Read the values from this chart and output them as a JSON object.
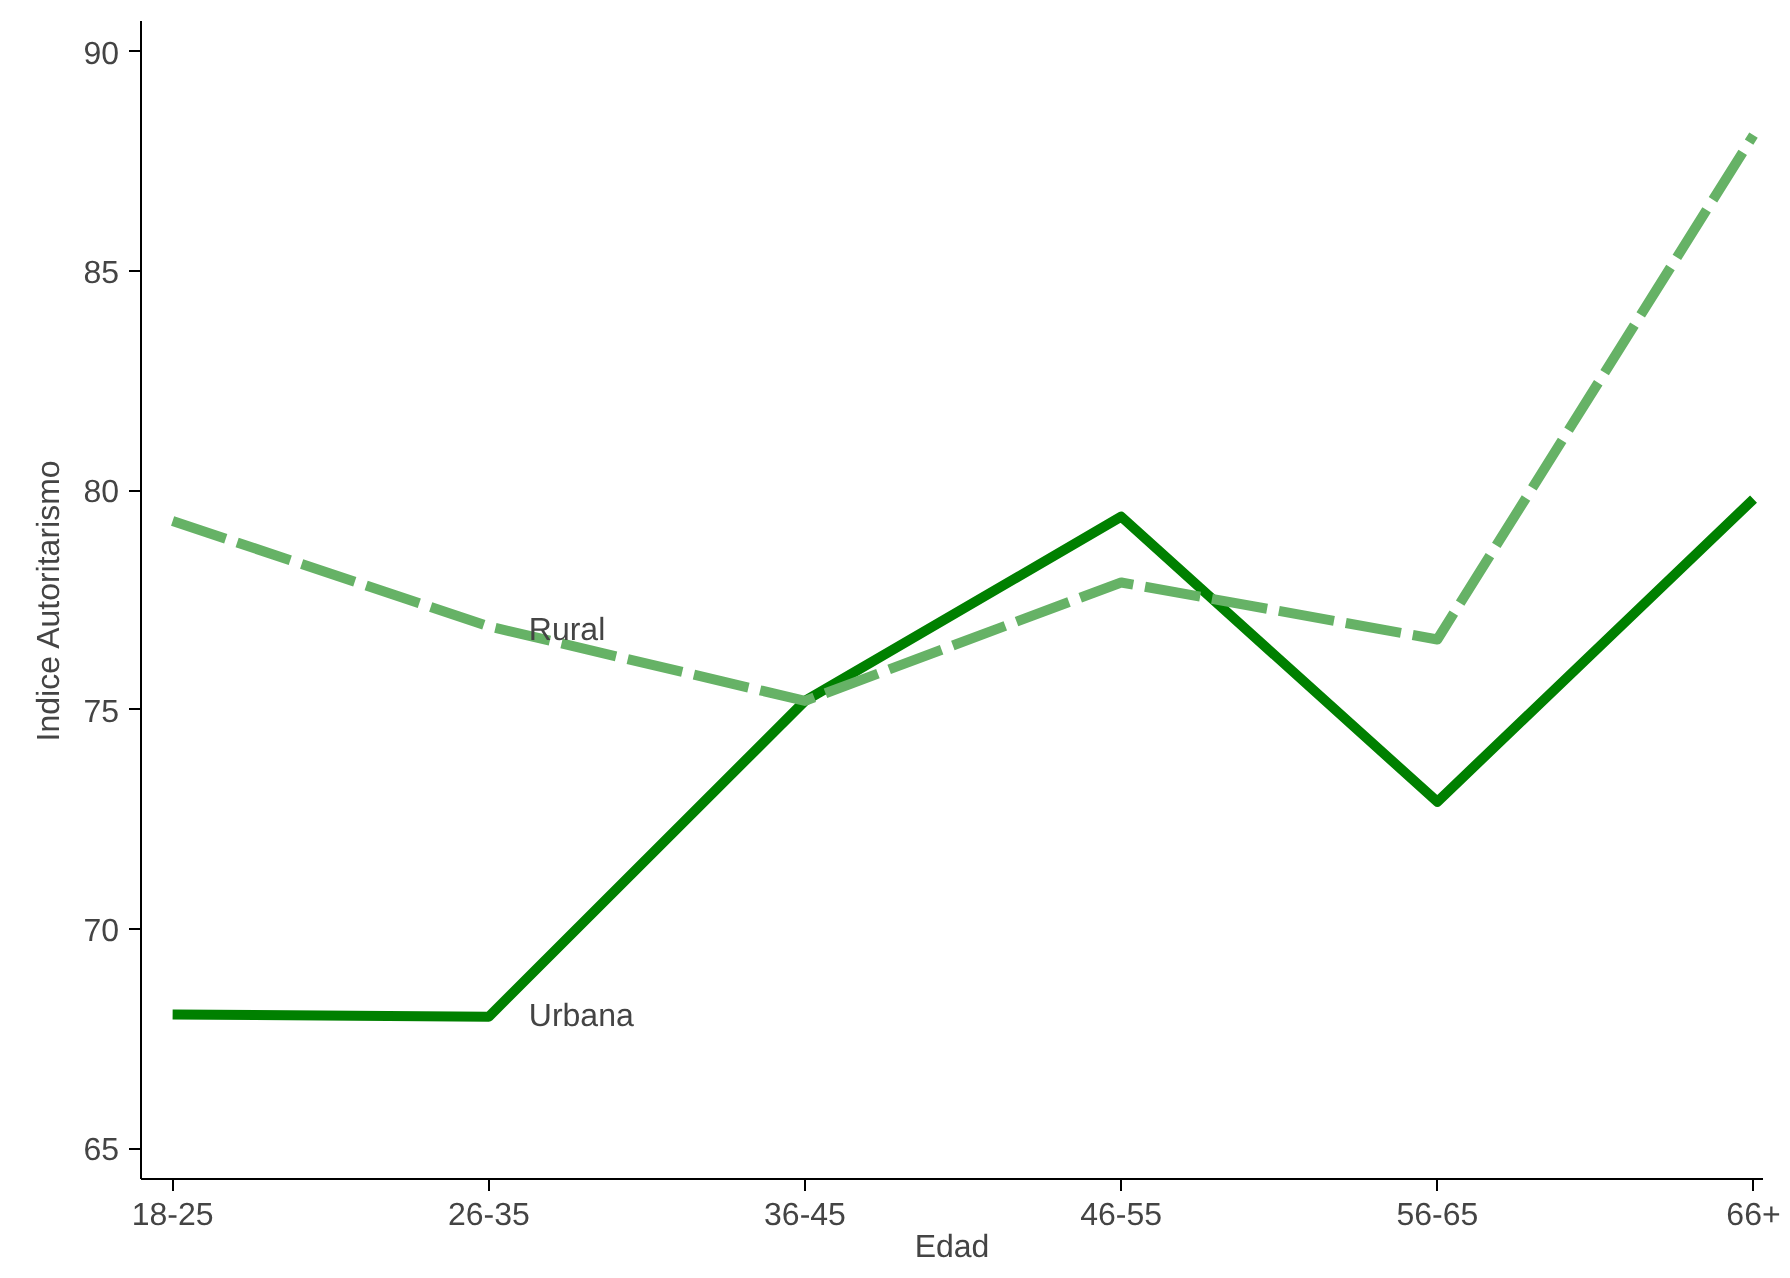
{
  "chart_data": {
    "type": "line",
    "xlabel": "Edad",
    "ylabel": "Indice Autoritarismo",
    "categories": [
      "18-25",
      "26-35",
      "36-45",
      "46-55",
      "56-65",
      "66+"
    ],
    "series": [
      {
        "color": "#008000",
        "line_style": "solid",
        "values": [
          68.05,
          68.0,
          75.2,
          79.4,
          72.9,
          79.8
        ]
      },
      {
        "color": "#66b266",
        "line_style": "dashed",
        "values": [
          79.3,
          76.9,
          75.2,
          77.9,
          76.6,
          88.1
        ]
      }
    ],
    "annotations": [
      {
        "text": "Rural",
        "x": "26-35",
        "y": 76.8
      },
      {
        "text": "Urbana",
        "x": "26-35",
        "y": 68.0
      }
    ],
    "ylim": [
      64.3,
      90.7
    ],
    "yticks": [
      65,
      70,
      75,
      80,
      85,
      90
    ]
  }
}
